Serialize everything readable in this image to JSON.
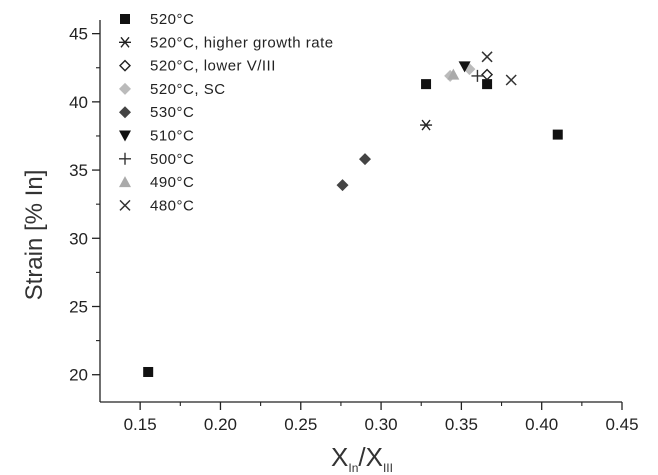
{
  "chart_data": {
    "type": "scatter",
    "xlabel": {
      "main": "X",
      "sub1": "In",
      "sep": "/X",
      "sub2": "III"
    },
    "ylabel": "Strain [% In]",
    "xlim": [
      0.125,
      0.45
    ],
    "ylim": [
      18,
      46
    ],
    "x_ticks": [
      "0.15",
      "0.20",
      "0.25",
      "0.30",
      "0.35",
      "0.40",
      "0.45"
    ],
    "x_tick_values": [
      0.15,
      0.2,
      0.25,
      0.3,
      0.35,
      0.4,
      0.45
    ],
    "y_ticks": [
      "20",
      "25",
      "30",
      "35",
      "40",
      "45"
    ],
    "y_tick_values": [
      20,
      25,
      30,
      35,
      40,
      45
    ],
    "legend_position": "top-left",
    "series": [
      {
        "name": "520°C",
        "marker": "square",
        "color": "#111111",
        "points": [
          [
            0.155,
            20.2
          ],
          [
            0.328,
            41.3
          ],
          [
            0.366,
            41.3
          ],
          [
            0.41,
            37.6
          ]
        ]
      },
      {
        "name": "520°C, higher growth rate",
        "marker": "asterisk",
        "color": "#222222",
        "points": [
          [
            0.328,
            38.3
          ]
        ]
      },
      {
        "name": "520°C, lower V/III",
        "marker": "open-diamond",
        "color": "#222222",
        "points": [
          [
            0.366,
            42.0
          ]
        ]
      },
      {
        "name": "520°C, SC",
        "marker": "diamond",
        "color": "#bbbbbb",
        "points": [
          [
            0.343,
            41.9
          ],
          [
            0.355,
            42.4
          ]
        ]
      },
      {
        "name": "530°C",
        "marker": "diamond",
        "color": "#444444",
        "points": [
          [
            0.276,
            33.9
          ],
          [
            0.29,
            35.8
          ]
        ]
      },
      {
        "name": "510°C",
        "marker": "triangle-down",
        "color": "#111111",
        "points": [
          [
            0.352,
            42.6
          ]
        ]
      },
      {
        "name": "500°C",
        "marker": "plus",
        "color": "#333333",
        "points": [
          [
            0.36,
            41.9
          ]
        ]
      },
      {
        "name": "490°C",
        "marker": "triangle-up",
        "color": "#aaaaaa",
        "points": [
          [
            0.345,
            42.0
          ]
        ]
      },
      {
        "name": "480°C",
        "marker": "x",
        "color": "#333333",
        "points": [
          [
            0.366,
            43.3
          ],
          [
            0.381,
            41.6
          ]
        ]
      }
    ]
  }
}
